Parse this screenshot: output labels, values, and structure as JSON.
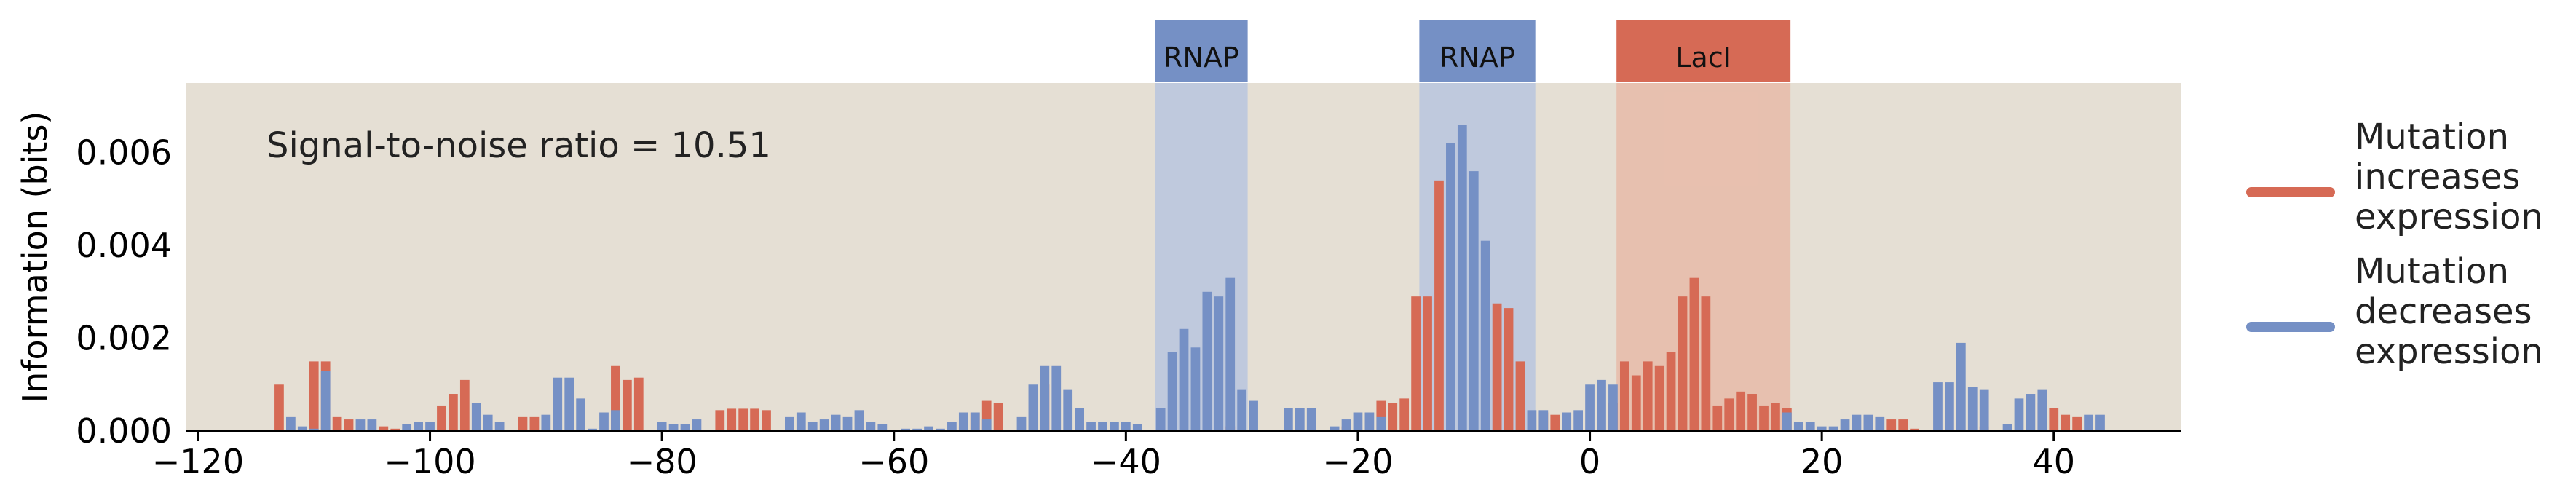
{
  "chart_data": {
    "type": "bar",
    "ylabel": "Information (bits)",
    "xlabel": "",
    "xlim": [
      -121,
      51
    ],
    "ylim": [
      0,
      0.0075
    ],
    "xticks": [
      "−120",
      "−100",
      "−80",
      "−60",
      "−40",
      "−20",
      "0",
      "20",
      "40"
    ],
    "xtick_values": [
      -120,
      -100,
      -80,
      -60,
      -40,
      -20,
      0,
      20,
      40
    ],
    "yticks": [
      "0.000",
      "0.002",
      "0.004",
      "0.006"
    ],
    "ytick_values": [
      0,
      0.002,
      0.004,
      0.006
    ],
    "grid": false,
    "annotation": "Signal-to-noise ratio = 10.51",
    "background": "#e5dfd4",
    "colors": {
      "increase": "#d66a55",
      "decrease": "#7590c5"
    },
    "legend_position": "right",
    "legend": [
      {
        "label": "Mutation increases expression",
        "lines": [
          "Mutation",
          "increases",
          "expression"
        ],
        "color": "#d66a55"
      },
      {
        "label": "Mutation decreases expression",
        "lines": [
          "Mutation",
          "decreases",
          "expression"
        ],
        "color": "#7590c5"
      }
    ],
    "regions": [
      {
        "label": "RNAP",
        "start": -37.5,
        "end": -29.5,
        "color": "#7590c5",
        "shade": "#b9c6de"
      },
      {
        "label": "RNAP",
        "start": -14.7,
        "end": -4.7,
        "color": "#7590c5",
        "shade": "#b9c6de"
      },
      {
        "label": "LacI",
        "start": 2.3,
        "end": 17.3,
        "color": "#d66a55",
        "shade": "#e8bba8"
      }
    ],
    "series": [
      {
        "name": "Mutation increases expression",
        "color": "#d66a55",
        "points": [
          [
            -113,
            0.001
          ],
          [
            -110,
            0.0015
          ],
          [
            -109,
            0.0015
          ],
          [
            -108,
            0.0003
          ],
          [
            -107,
            0.00025
          ],
          [
            -104,
            0.0001
          ],
          [
            -103,
            5e-05
          ],
          [
            -99,
            0.00055
          ],
          [
            -98,
            0.0008
          ],
          [
            -97,
            0.0011
          ],
          [
            -92,
            0.0003
          ],
          [
            -91,
            0.0003
          ],
          [
            -84,
            0.0014
          ],
          [
            -83,
            0.0011
          ],
          [
            -82,
            0.00115
          ],
          [
            -75,
            0.00045
          ],
          [
            -74,
            0.00048
          ],
          [
            -73,
            0.00048
          ],
          [
            -72,
            0.00048
          ],
          [
            -71,
            0.00045
          ],
          [
            -54,
            0.0001
          ],
          [
            -53,
            0.0004
          ],
          [
            -52,
            0.00065
          ],
          [
            -51,
            0.0006
          ],
          [
            -47,
            0.001
          ],
          [
            -31,
            0.0001
          ],
          [
            -21,
            0.0001
          ],
          [
            -18,
            0.00065
          ],
          [
            -17,
            0.0006
          ],
          [
            -16,
            0.0007
          ],
          [
            -15,
            0.0029
          ],
          [
            -14,
            0.0029
          ],
          [
            -13,
            0.0054
          ],
          [
            -8,
            0.00275
          ],
          [
            -7,
            0.00265
          ],
          [
            -6,
            0.0015
          ],
          [
            -4,
            0.0004
          ],
          [
            -3,
            0.00035
          ],
          [
            2,
            0.0006
          ],
          [
            3,
            0.0015
          ],
          [
            4,
            0.0012
          ],
          [
            5,
            0.0015
          ],
          [
            6,
            0.0014
          ],
          [
            7,
            0.0017
          ],
          [
            8,
            0.0029
          ],
          [
            9,
            0.0033
          ],
          [
            10,
            0.0029
          ],
          [
            11,
            0.00055
          ],
          [
            12,
            0.0007
          ],
          [
            13,
            0.00085
          ],
          [
            14,
            0.0008
          ],
          [
            15,
            0.00055
          ],
          [
            16,
            0.0006
          ],
          [
            17,
            0.0005
          ],
          [
            26,
            0.00025
          ],
          [
            27,
            0.00025
          ],
          [
            28,
            5e-05
          ],
          [
            34,
            0.0001
          ],
          [
            39,
            0.0006
          ],
          [
            40,
            0.0005
          ],
          [
            41,
            0.00035
          ],
          [
            42,
            0.0003
          ]
        ]
      },
      {
        "name": "Mutation decreases expression",
        "color": "#7590c5",
        "points": [
          [
            -112,
            0.0003
          ],
          [
            -111,
            0.0001
          ],
          [
            -110,
            5e-05
          ],
          [
            -109,
            0.0013
          ],
          [
            -106,
            0.00025
          ],
          [
            -105,
            0.00025
          ],
          [
            -102,
            0.00015
          ],
          [
            -101,
            0.0002
          ],
          [
            -100,
            0.0002
          ],
          [
            -96,
            0.0006
          ],
          [
            -95,
            0.00035
          ],
          [
            -94,
            0.0002
          ],
          [
            -90,
            0.00035
          ],
          [
            -89,
            0.00115
          ],
          [
            -88,
            0.00115
          ],
          [
            -87,
            0.0007
          ],
          [
            -86,
            5e-05
          ],
          [
            -85,
            0.0004
          ],
          [
            -84,
            0.00045
          ],
          [
            -80,
            0.0002
          ],
          [
            -79,
            0.00015
          ],
          [
            -78,
            0.00015
          ],
          [
            -77,
            0.00025
          ],
          [
            -69,
            0.0003
          ],
          [
            -68,
            0.0004
          ],
          [
            -67,
            0.0002
          ],
          [
            -66,
            0.00025
          ],
          [
            -65,
            0.00035
          ],
          [
            -64,
            0.0003
          ],
          [
            -63,
            0.00045
          ],
          [
            -62,
            0.0002
          ],
          [
            -61,
            0.00015
          ],
          [
            -59,
            5e-05
          ],
          [
            -58,
            5e-05
          ],
          [
            -57,
            0.0001
          ],
          [
            -56,
            5e-05
          ],
          [
            -55,
            0.0002
          ],
          [
            -54,
            0.0004
          ],
          [
            -53,
            0.0004
          ],
          [
            -52,
            0.00025
          ],
          [
            -49,
            0.0003
          ],
          [
            -48,
            0.001
          ],
          [
            -47,
            0.0014
          ],
          [
            -46,
            0.0014
          ],
          [
            -45,
            0.0009
          ],
          [
            -44,
            0.0005
          ],
          [
            -43,
            0.0002
          ],
          [
            -42,
            0.0002
          ],
          [
            -41,
            0.0002
          ],
          [
            -40,
            0.0002
          ],
          [
            -39,
            0.00015
          ],
          [
            -37,
            0.0005
          ],
          [
            -36,
            0.0017
          ],
          [
            -35,
            0.0022
          ],
          [
            -34,
            0.0018
          ],
          [
            -33,
            0.003
          ],
          [
            -32,
            0.0029
          ],
          [
            -31,
            0.0033
          ],
          [
            -30,
            0.0009
          ],
          [
            -29,
            0.00065
          ],
          [
            -26,
            0.0005
          ],
          [
            -25,
            0.0005
          ],
          [
            -24,
            0.0005
          ],
          [
            -22,
            0.0001
          ],
          [
            -21,
            0.00025
          ],
          [
            -20,
            0.0004
          ],
          [
            -19,
            0.0004
          ],
          [
            -18,
            0.0003
          ],
          [
            -12,
            0.0062
          ],
          [
            -11,
            0.0066
          ],
          [
            -10,
            0.0056
          ],
          [
            -9,
            0.0041
          ],
          [
            -5,
            0.00045
          ],
          [
            -4,
            0.00045
          ],
          [
            -2,
            0.0004
          ],
          [
            -1,
            0.00045
          ],
          [
            0,
            0.001
          ],
          [
            1,
            0.0011
          ],
          [
            2,
            0.001
          ],
          [
            17,
            0.0004
          ],
          [
            18,
            0.0002
          ],
          [
            19,
            0.0002
          ],
          [
            20,
            0.0001
          ],
          [
            21,
            0.0001
          ],
          [
            22,
            0.00025
          ],
          [
            23,
            0.00035
          ],
          [
            24,
            0.00035
          ],
          [
            25,
            0.0003
          ],
          [
            30,
            0.00105
          ],
          [
            31,
            0.00105
          ],
          [
            32,
            0.0019
          ],
          [
            33,
            0.00095
          ],
          [
            34,
            0.0009
          ],
          [
            36,
            0.00015
          ],
          [
            37,
            0.0007
          ],
          [
            38,
            0.0008
          ],
          [
            39,
            0.0009
          ],
          [
            43,
            0.00035
          ],
          [
            44,
            0.00035
          ]
        ]
      }
    ]
  }
}
